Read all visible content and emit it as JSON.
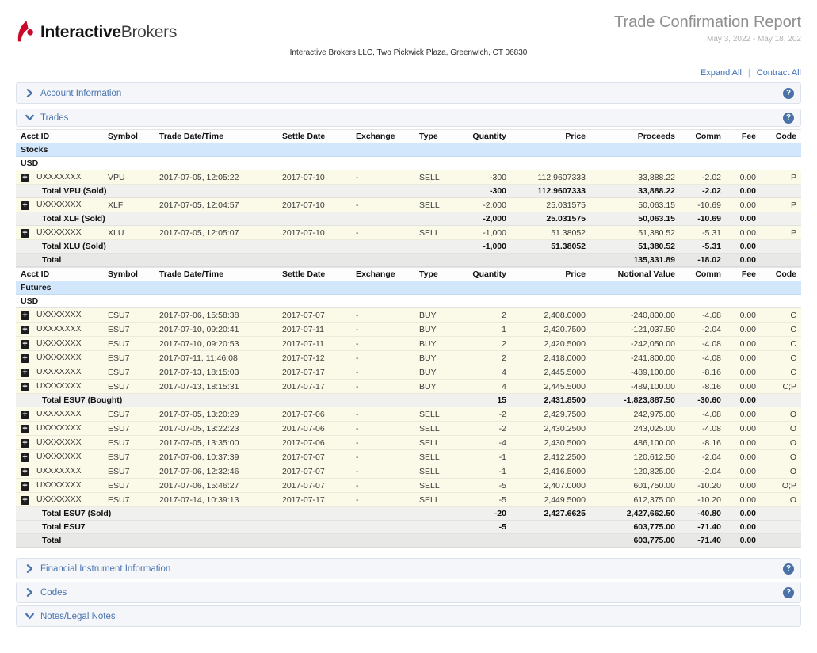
{
  "brand": {
    "logo_bold": "Interactive",
    "logo_regular": "Brokers"
  },
  "report": {
    "title": "Trade Confirmation Report",
    "date_range": "May 3, 2022 - May 18, 202",
    "address": "Interactive Brokers LLC, Two Pickwick Plaza, Greenwich, CT 06830"
  },
  "toolbar": {
    "expand_all": "Expand All",
    "separator": "|",
    "contract_all": "Contract All"
  },
  "sections": {
    "account_information": {
      "label": "Account Information",
      "expanded": false
    },
    "trades": {
      "label": "Trades",
      "expanded": true
    },
    "financial_instrument_information": {
      "label": "Financial Instrument Information",
      "expanded": false
    },
    "codes": {
      "label": "Codes",
      "expanded": false
    },
    "notes_legal_notes": {
      "label": "Notes/Legal Notes",
      "expanded": true
    }
  },
  "colors": {
    "brand_red": "#c9082a",
    "section_blue": "#4a74ad",
    "link_blue": "#3e6fb8",
    "group_row_blue": "#d2e7fb",
    "trade_row_ivory": "#fbfae8",
    "subtotal_gray": "#f0f0ee",
    "total_gray": "#e8e8e6"
  },
  "trades": {
    "tables": [
      {
        "id": "stocks",
        "columns": [
          "Acct ID",
          "Symbol",
          "Trade Date/Time",
          "Settle Date",
          "Exchange",
          "Type",
          "Quantity",
          "Price",
          "Proceeds",
          "Comm",
          "Fee",
          "Code"
        ],
        "group": "Stocks",
        "currency": "USD",
        "rows": [
          {
            "kind": "trade",
            "cells": [
              "UXXXXXXX",
              "VPU",
              "2017-07-05, 12:05:22",
              "2017-07-10",
              "-",
              "SELL",
              "-300",
              "112.9607333",
              "33,888.22",
              "-2.02",
              "0.00",
              "P"
            ]
          },
          {
            "kind": "subtotal",
            "label": "Total VPU (Sold)",
            "cells": [
              "-300",
              "112.9607333",
              "33,888.22",
              "-2.02",
              "0.00",
              ""
            ]
          },
          {
            "kind": "trade",
            "cells": [
              "UXXXXXXX",
              "XLF",
              "2017-07-05, 12:04:57",
              "2017-07-10",
              "-",
              "SELL",
              "-2,000",
              "25.031575",
              "50,063.15",
              "-10.69",
              "0.00",
              "P"
            ]
          },
          {
            "kind": "subtotal",
            "label": "Total XLF (Sold)",
            "cells": [
              "-2,000",
              "25.031575",
              "50,063.15",
              "-10.69",
              "0.00",
              ""
            ]
          },
          {
            "kind": "trade",
            "cells": [
              "UXXXXXXX",
              "XLU",
              "2017-07-05, 12:05:07",
              "2017-07-10",
              "-",
              "SELL",
              "-1,000",
              "51.38052",
              "51,380.52",
              "-5.31",
              "0.00",
              "P"
            ]
          },
          {
            "kind": "subtotal",
            "label": "Total XLU (Sold)",
            "cells": [
              "-1,000",
              "51.38052",
              "51,380.52",
              "-5.31",
              "0.00",
              ""
            ]
          },
          {
            "kind": "total",
            "label": "Total",
            "cells": [
              "",
              "",
              "135,331.89",
              "-18.02",
              "0.00",
              ""
            ]
          }
        ]
      },
      {
        "id": "futures",
        "columns": [
          "Acct ID",
          "Symbol",
          "Trade Date/Time",
          "Settle Date",
          "Exchange",
          "Type",
          "Quantity",
          "Price",
          "Notional Value",
          "Comm",
          "Fee",
          "Code"
        ],
        "group": "Futures",
        "currency": "USD",
        "rows": [
          {
            "kind": "trade",
            "cells": [
              "UXXXXXXX",
              "ESU7",
              "2017-07-06, 15:58:38",
              "2017-07-07",
              "-",
              "BUY",
              "2",
              "2,408.0000",
              "-240,800.00",
              "-4.08",
              "0.00",
              "C"
            ]
          },
          {
            "kind": "trade",
            "cells": [
              "UXXXXXXX",
              "ESU7",
              "2017-07-10, 09:20:41",
              "2017-07-11",
              "-",
              "BUY",
              "1",
              "2,420.7500",
              "-121,037.50",
              "-2.04",
              "0.00",
              "C"
            ]
          },
          {
            "kind": "trade",
            "cells": [
              "UXXXXXXX",
              "ESU7",
              "2017-07-10, 09:20:53",
              "2017-07-11",
              "-",
              "BUY",
              "2",
              "2,420.5000",
              "-242,050.00",
              "-4.08",
              "0.00",
              "C"
            ]
          },
          {
            "kind": "trade",
            "cells": [
              "UXXXXXXX",
              "ESU7",
              "2017-07-11, 11:46:08",
              "2017-07-12",
              "-",
              "BUY",
              "2",
              "2,418.0000",
              "-241,800.00",
              "-4.08",
              "0.00",
              "C"
            ]
          },
          {
            "kind": "trade",
            "cells": [
              "UXXXXXXX",
              "ESU7",
              "2017-07-13, 18:15:03",
              "2017-07-17",
              "-",
              "BUY",
              "4",
              "2,445.5000",
              "-489,100.00",
              "-8.16",
              "0.00",
              "C"
            ]
          },
          {
            "kind": "trade",
            "cells": [
              "UXXXXXXX",
              "ESU7",
              "2017-07-13, 18:15:31",
              "2017-07-17",
              "-",
              "BUY",
              "4",
              "2,445.5000",
              "-489,100.00",
              "-8.16",
              "0.00",
              "C;P"
            ]
          },
          {
            "kind": "subtotal",
            "label": "Total ESU7 (Bought)",
            "cells": [
              "15",
              "2,431.8500",
              "-1,823,887.50",
              "-30.60",
              "0.00",
              ""
            ]
          },
          {
            "kind": "trade",
            "cells": [
              "UXXXXXXX",
              "ESU7",
              "2017-07-05, 13:20:29",
              "2017-07-06",
              "-",
              "SELL",
              "-2",
              "2,429.7500",
              "242,975.00",
              "-4.08",
              "0.00",
              "O"
            ]
          },
          {
            "kind": "trade",
            "cells": [
              "UXXXXXXX",
              "ESU7",
              "2017-07-05, 13:22:23",
              "2017-07-06",
              "-",
              "SELL",
              "-2",
              "2,430.2500",
              "243,025.00",
              "-4.08",
              "0.00",
              "O"
            ]
          },
          {
            "kind": "trade",
            "cells": [
              "UXXXXXXX",
              "ESU7",
              "2017-07-05, 13:35:00",
              "2017-07-06",
              "-",
              "SELL",
              "-4",
              "2,430.5000",
              "486,100.00",
              "-8.16",
              "0.00",
              "O"
            ]
          },
          {
            "kind": "trade",
            "cells": [
              "UXXXXXXX",
              "ESU7",
              "2017-07-06, 10:37:39",
              "2017-07-07",
              "-",
              "SELL",
              "-1",
              "2,412.2500",
              "120,612.50",
              "-2.04",
              "0.00",
              "O"
            ]
          },
          {
            "kind": "trade",
            "cells": [
              "UXXXXXXX",
              "ESU7",
              "2017-07-06, 12:32:46",
              "2017-07-07",
              "-",
              "SELL",
              "-1",
              "2,416.5000",
              "120,825.00",
              "-2.04",
              "0.00",
              "O"
            ]
          },
          {
            "kind": "trade",
            "cells": [
              "UXXXXXXX",
              "ESU7",
              "2017-07-06, 15:46:27",
              "2017-07-07",
              "-",
              "SELL",
              "-5",
              "2,407.0000",
              "601,750.00",
              "-10.20",
              "0.00",
              "O;P"
            ]
          },
          {
            "kind": "trade",
            "cells": [
              "UXXXXXXX",
              "ESU7",
              "2017-07-14, 10:39:13",
              "2017-07-17",
              "-",
              "SELL",
              "-5",
              "2,449.5000",
              "612,375.00",
              "-10.20",
              "0.00",
              "O"
            ]
          },
          {
            "kind": "subtotal",
            "label": "Total ESU7 (Sold)",
            "cells": [
              "-20",
              "2,427.6625",
              "2,427,662.50",
              "-40.80",
              "0.00",
              ""
            ]
          },
          {
            "kind": "subtotal",
            "label": "Total ESU7",
            "cells": [
              "-5",
              "",
              "603,775.00",
              "-71.40",
              "0.00",
              ""
            ]
          },
          {
            "kind": "total",
            "label": "Total",
            "cells": [
              "",
              "",
              "603,775.00",
              "-71.40",
              "0.00",
              ""
            ]
          }
        ]
      }
    ]
  }
}
